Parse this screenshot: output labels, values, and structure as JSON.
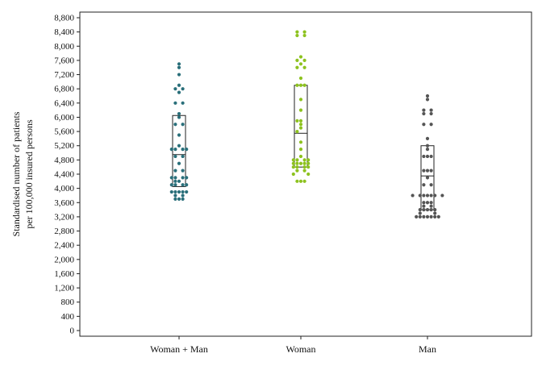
{
  "chart_data": {
    "type": "scatter",
    "title": "",
    "ylabel_lines": [
      "Standardised number of patients",
      "per 100,000 insured persons"
    ],
    "ylim": [
      0,
      8800
    ],
    "yticks": [
      0,
      400,
      800,
      1200,
      1600,
      2000,
      2400,
      2800,
      3200,
      3600,
      4000,
      4400,
      4800,
      5200,
      5600,
      6000,
      6400,
      6800,
      7200,
      7600,
      8000,
      8400,
      8800
    ],
    "ytick_labels": [
      "0",
      "400",
      "800",
      "1,200",
      "1,600",
      "2,000",
      "2,400",
      "2,800",
      "3,200",
      "3,600",
      "4,000",
      "4,400",
      "4,800",
      "5,200",
      "5,600",
      "6,000",
      "6,400",
      "6,800",
      "7,200",
      "7,600",
      "8,000",
      "8,400",
      "8,800"
    ],
    "grid": false,
    "categories": [
      "Woman + Man",
      "Woman",
      "Man"
    ],
    "series": [
      {
        "color": "#2a6f7a",
        "box": {
          "q1": 4050,
          "median": 4950,
          "q3": 6050
        },
        "points": [
          [
            0,
            7500
          ],
          [
            0,
            7400
          ],
          [
            0,
            7200
          ],
          [
            0,
            6900
          ],
          [
            -1,
            6800
          ],
          [
            1,
            6800
          ],
          [
            0,
            6700
          ],
          [
            -1,
            6400
          ],
          [
            1,
            6400
          ],
          [
            0,
            6100
          ],
          [
            0,
            6000
          ],
          [
            -1,
            5800
          ],
          [
            1,
            5800
          ],
          [
            0,
            5500
          ],
          [
            -2,
            5100
          ],
          [
            -1,
            5100
          ],
          [
            1,
            5100
          ],
          [
            2,
            5100
          ],
          [
            0,
            5200
          ],
          [
            -1,
            4900
          ],
          [
            1,
            4900
          ],
          [
            0,
            4700
          ],
          [
            -1,
            4500
          ],
          [
            1,
            4500
          ],
          [
            -2,
            4300
          ],
          [
            -1,
            4300
          ],
          [
            1,
            4300
          ],
          [
            2,
            4300
          ],
          [
            -1,
            4200
          ],
          [
            0,
            4200
          ],
          [
            -2,
            4100
          ],
          [
            -1,
            4100
          ],
          [
            1,
            4100
          ],
          [
            2,
            4100
          ],
          [
            -2,
            3900
          ],
          [
            -1,
            3900
          ],
          [
            0,
            3900
          ],
          [
            1,
            3900
          ],
          [
            2,
            3900
          ],
          [
            -1,
            3800
          ],
          [
            1,
            3800
          ],
          [
            -1,
            3700
          ],
          [
            0,
            3700
          ],
          [
            1,
            3700
          ]
        ]
      },
      {
        "color": "#8dc21f",
        "box": {
          "q1": 4600,
          "median": 5550,
          "q3": 6900
        },
        "points": [
          [
            -1,
            8400
          ],
          [
            1,
            8400
          ],
          [
            -1,
            8300
          ],
          [
            1,
            8300
          ],
          [
            0,
            7700
          ],
          [
            -1,
            7600
          ],
          [
            1,
            7600
          ],
          [
            0,
            7500
          ],
          [
            -1,
            7400
          ],
          [
            1,
            7400
          ],
          [
            0,
            7100
          ],
          [
            -1,
            6900
          ],
          [
            0,
            6900
          ],
          [
            1,
            6900
          ],
          [
            0,
            6500
          ],
          [
            0,
            6200
          ],
          [
            -1,
            5900
          ],
          [
            0,
            5900
          ],
          [
            0,
            5800
          ],
          [
            0,
            5700
          ],
          [
            -1,
            5600
          ],
          [
            0,
            5300
          ],
          [
            0,
            5100
          ],
          [
            0,
            4900
          ],
          [
            -2,
            4800
          ],
          [
            -1,
            4800
          ],
          [
            1,
            4800
          ],
          [
            2,
            4800
          ],
          [
            -2,
            4700
          ],
          [
            -1,
            4700
          ],
          [
            0,
            4700
          ],
          [
            1,
            4700
          ],
          [
            2,
            4700
          ],
          [
            -2,
            4600
          ],
          [
            -1,
            4600
          ],
          [
            1,
            4600
          ],
          [
            2,
            4600
          ],
          [
            -1,
            4500
          ],
          [
            1,
            4500
          ],
          [
            -2,
            4400
          ],
          [
            2,
            4400
          ],
          [
            -1,
            4200
          ],
          [
            0,
            4200
          ],
          [
            1,
            4200
          ]
        ]
      },
      {
        "color": "#555555",
        "box": {
          "q1": 3400,
          "median": 4350,
          "q3": 5200
        },
        "points": [
          [
            0,
            6600
          ],
          [
            0,
            6500
          ],
          [
            -1,
            6200
          ],
          [
            1,
            6200
          ],
          [
            -1,
            6100
          ],
          [
            1,
            6100
          ],
          [
            -1,
            5800
          ],
          [
            1,
            5800
          ],
          [
            0,
            5400
          ],
          [
            0,
            5200
          ],
          [
            0,
            5100
          ],
          [
            -1,
            4900
          ],
          [
            0,
            4900
          ],
          [
            1,
            4900
          ],
          [
            -1,
            4500
          ],
          [
            0,
            4500
          ],
          [
            1,
            4500
          ],
          [
            0,
            4300
          ],
          [
            -1,
            4100
          ],
          [
            1,
            4100
          ],
          [
            -4,
            3800
          ],
          [
            -2,
            3800
          ],
          [
            -1,
            3800
          ],
          [
            0,
            3800
          ],
          [
            1,
            3800
          ],
          [
            2,
            3800
          ],
          [
            4,
            3800
          ],
          [
            -1,
            3600
          ],
          [
            0,
            3600
          ],
          [
            1,
            3600
          ],
          [
            -1,
            3500
          ],
          [
            1,
            3500
          ],
          [
            -2,
            3400
          ],
          [
            -1,
            3400
          ],
          [
            0,
            3400
          ],
          [
            1,
            3400
          ],
          [
            2,
            3400
          ],
          [
            -2,
            3300
          ],
          [
            2,
            3300
          ],
          [
            -3,
            3200
          ],
          [
            -2,
            3200
          ],
          [
            -1,
            3200
          ],
          [
            0,
            3200
          ],
          [
            1,
            3200
          ],
          [
            2,
            3200
          ],
          [
            3,
            3200
          ]
        ]
      }
    ]
  }
}
